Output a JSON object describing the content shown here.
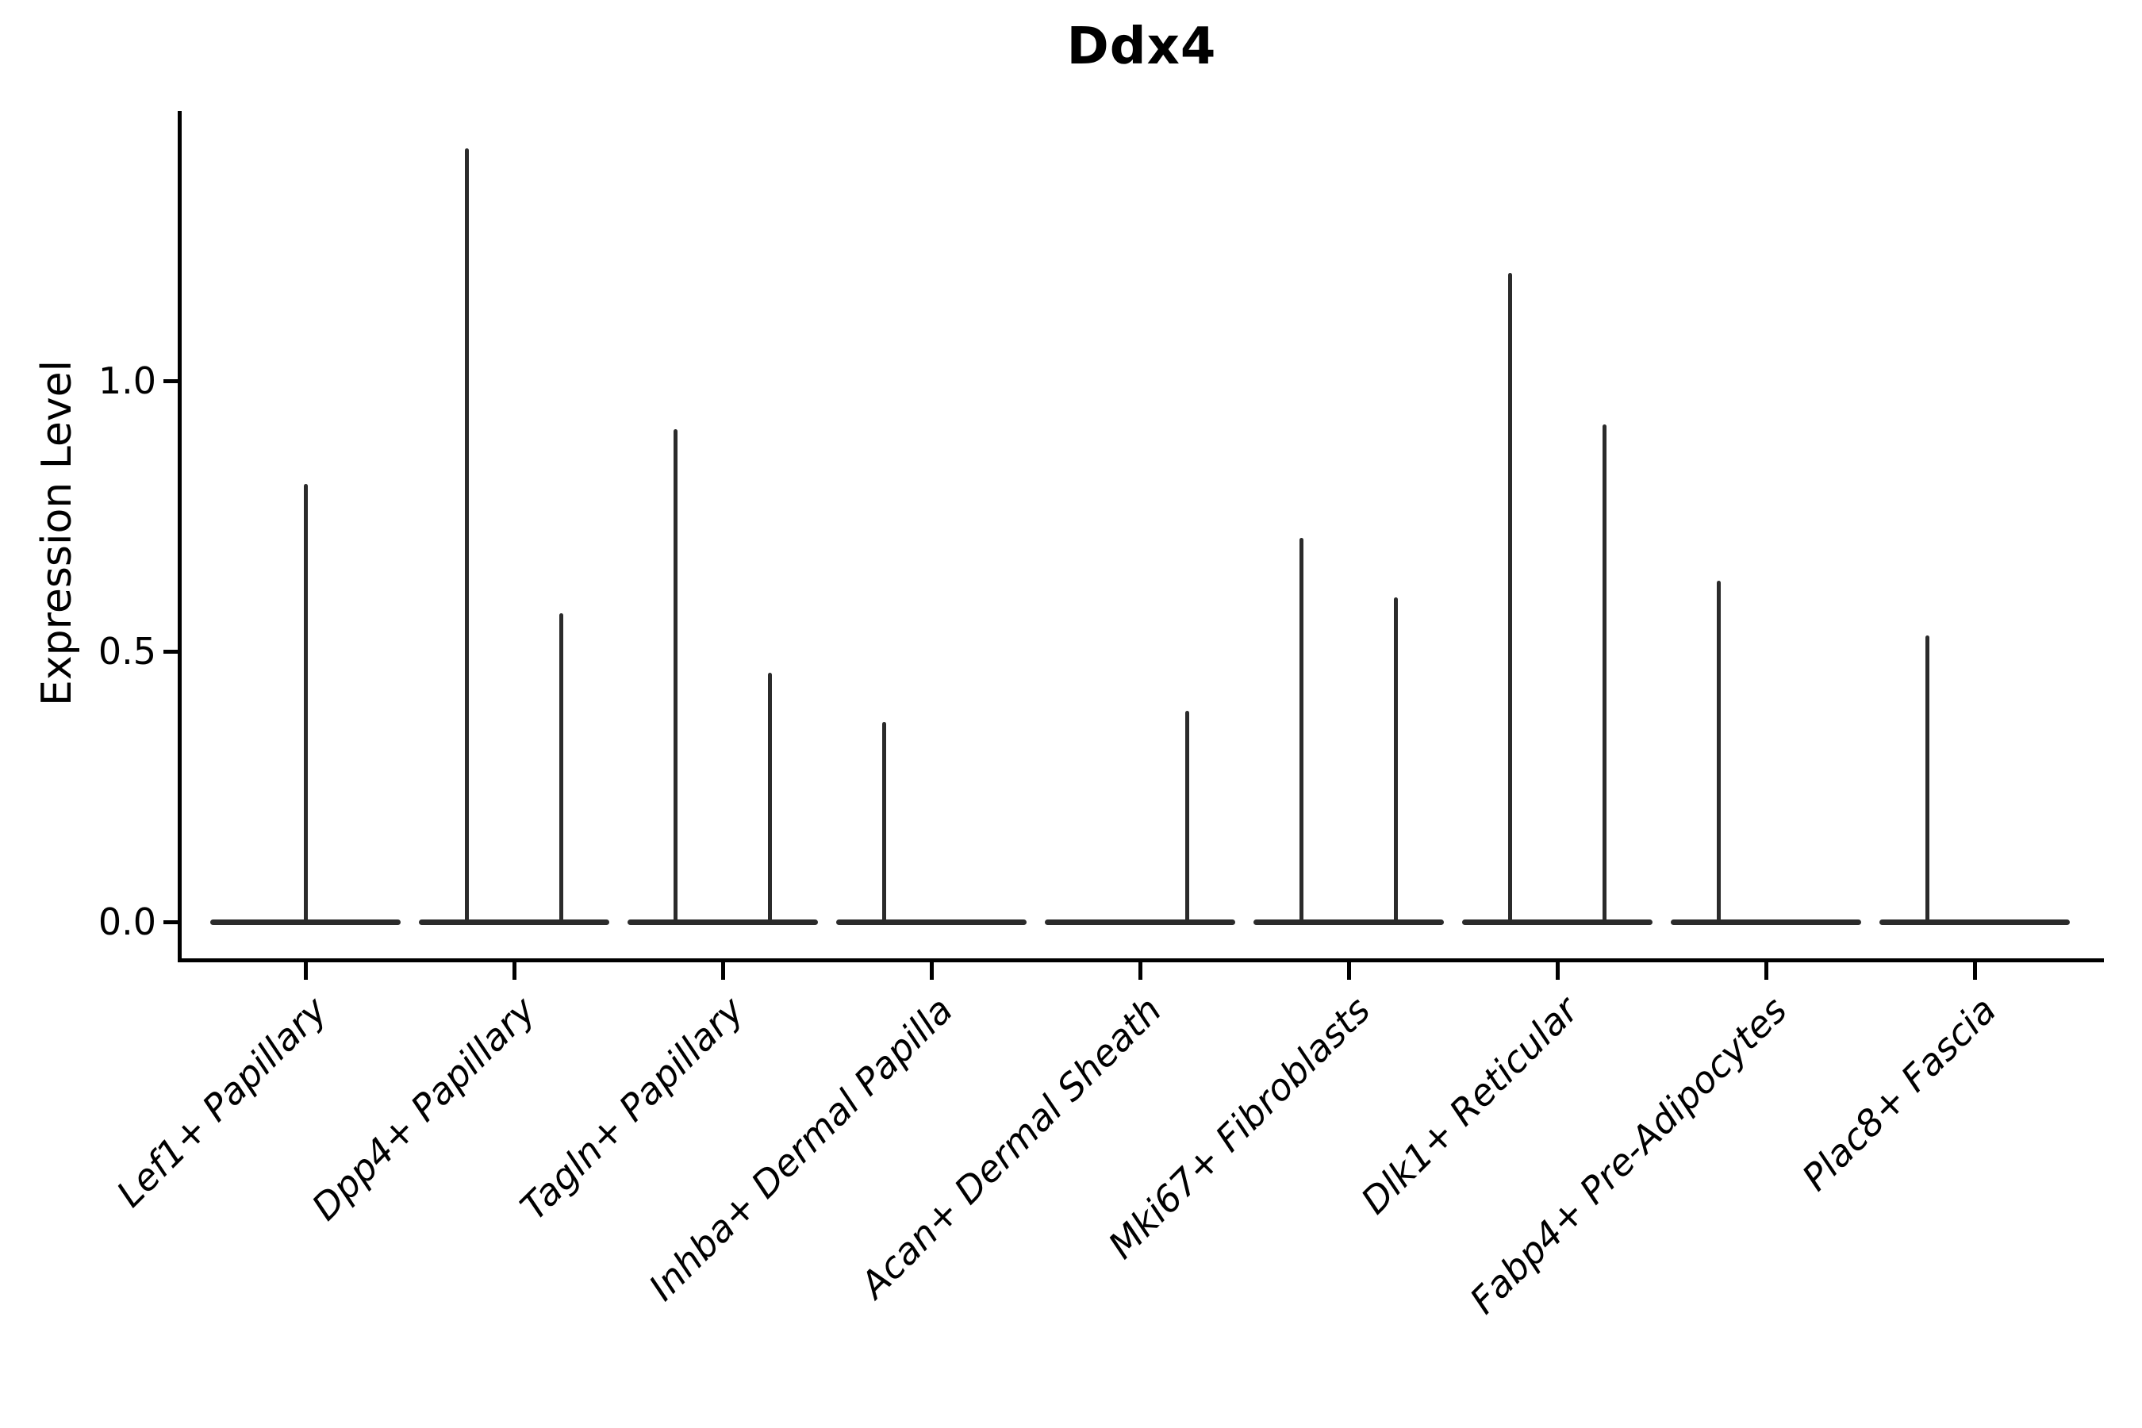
{
  "chart_data": {
    "type": "violin",
    "title": "Ddx4",
    "ylabel": "Expression Level",
    "xlabel": "",
    "ylim": [
      0,
      1.45
    ],
    "grid": false,
    "legend": "none",
    "y_ticks": [
      {
        "label": "0.0",
        "value": 0.0
      },
      {
        "label": "0.5",
        "value": 0.5
      },
      {
        "label": "1.0",
        "value": 1.0
      }
    ],
    "x_label_rotation_deg": 45,
    "x_label_style": "italic",
    "categories": [
      "Lef1+ Papillary",
      "Dpp4+ Papillary",
      "Tagln+ Papillary",
      "Inhba+ Dermal Papilla",
      "Acan+ Dermal Sheath",
      "Mki67+ Fibroblasts",
      "Dlk1+ Reticular",
      "Fabp4+ Pre-Adipocytes",
      "Plac8+ Fascia"
    ],
    "violins": [
      {
        "category": "Lef1+ Papillary",
        "zero_bar": true,
        "spikes": [
          {
            "pos": "center",
            "value": 0.81
          }
        ]
      },
      {
        "category": "Dpp4+ Papillary",
        "zero_bar": true,
        "spikes": [
          {
            "pos": "left",
            "value": 1.43
          },
          {
            "pos": "right",
            "value": 0.57
          }
        ]
      },
      {
        "category": "Tagln+ Papillary",
        "zero_bar": true,
        "spikes": [
          {
            "pos": "left",
            "value": 0.91
          },
          {
            "pos": "right",
            "value": 0.46
          }
        ]
      },
      {
        "category": "Inhba+ Dermal Papilla",
        "zero_bar": true,
        "spikes": [
          {
            "pos": "left",
            "value": 0.37
          }
        ]
      },
      {
        "category": "Acan+ Dermal Sheath",
        "zero_bar": true,
        "spikes": [
          {
            "pos": "right",
            "value": 0.39
          }
        ]
      },
      {
        "category": "Mki67+ Fibroblasts",
        "zero_bar": true,
        "spikes": [
          {
            "pos": "left",
            "value": 0.71
          },
          {
            "pos": "right",
            "value": 0.6
          }
        ]
      },
      {
        "category": "Dlk1+ Reticular",
        "zero_bar": true,
        "spikes": [
          {
            "pos": "left",
            "value": 1.2
          },
          {
            "pos": "right",
            "value": 0.92
          }
        ]
      },
      {
        "category": "Fabp4+ Pre-Adipocytes",
        "zero_bar": true,
        "spikes": [
          {
            "pos": "left",
            "value": 0.63
          }
        ]
      },
      {
        "category": "Plac8+ Fascia",
        "zero_bar": true,
        "spikes": [
          {
            "pos": "left",
            "value": 0.53
          }
        ]
      }
    ],
    "colors": {
      "violin_line": "#2b2b2b",
      "axis": "#000000",
      "text": "#000000",
      "background": "#ffffff"
    }
  }
}
